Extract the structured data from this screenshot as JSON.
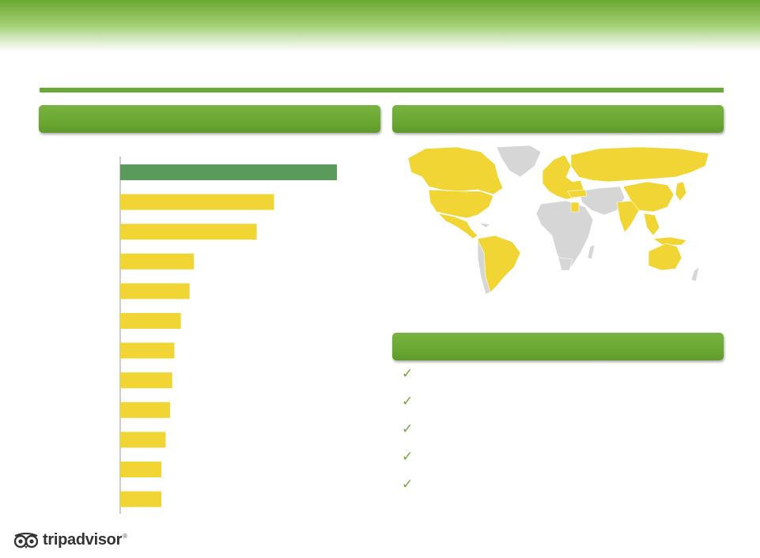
{
  "colors": {
    "accent": "#6aab36",
    "highlight_bar": "#5a9a5a",
    "bar": "#f0d535",
    "map_highlight": "#f0d535",
    "map_other": "#d6d6d6"
  },
  "panels": {
    "chart_header": "",
    "map_header": "",
    "list_header": ""
  },
  "checklist": {
    "items": [
      {
        "icon": "checkmark-icon",
        "glyph": "✓",
        "label": ""
      },
      {
        "icon": "checkmark-icon",
        "glyph": "✓",
        "label": ""
      },
      {
        "icon": "checkmark-icon",
        "glyph": "✓",
        "label": ""
      },
      {
        "icon": "checkmark-icon",
        "glyph": "✓",
        "label": ""
      },
      {
        "icon": "checkmark-icon",
        "glyph": "✓",
        "label": ""
      }
    ]
  },
  "logo": {
    "icon": "owl-eyes-icon",
    "text": "tripadvisor",
    "mark": "®"
  },
  "chart_data": {
    "type": "bar",
    "orientation": "horizontal",
    "title": "",
    "xlabel": "",
    "ylabel": "",
    "grid": false,
    "categories": [
      "",
      "",
      "",
      "",
      "",
      "",
      "",
      "",
      "",
      "",
      "",
      ""
    ],
    "values": [
      100,
      71,
      63,
      34,
      32,
      28,
      25,
      24,
      23,
      21,
      19,
      19
    ],
    "highlight_index": 0,
    "xlim": [
      0,
      100
    ]
  }
}
